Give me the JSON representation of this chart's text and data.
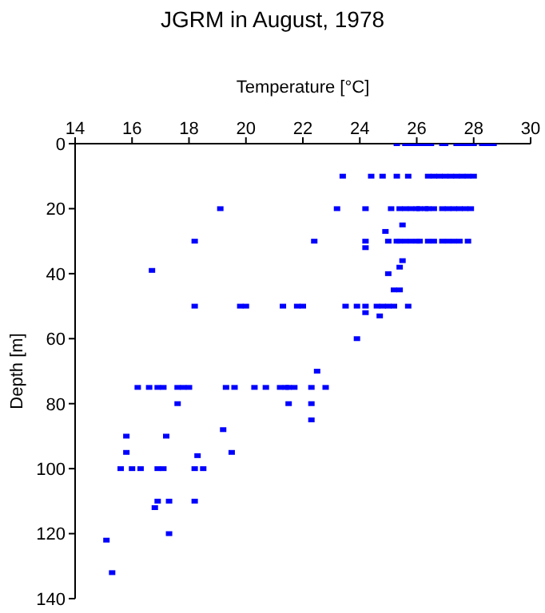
{
  "chart_data": {
    "type": "scatter",
    "title": "JGRM in August, 1978",
    "xlabel": "Temperature [°C]",
    "ylabel": "Depth [m]",
    "xlim": [
      14,
      30
    ],
    "xticks": [
      14,
      16,
      18,
      20,
      22,
      24,
      26,
      28,
      30
    ],
    "ylim": [
      140,
      0
    ],
    "yticks": [
      0,
      20,
      40,
      60,
      80,
      100,
      120,
      140
    ],
    "grid": false,
    "legend": false,
    "marker": "square",
    "series": [
      {
        "color": "#0000ff",
        "x": [
          25.3,
          25.6,
          25.8,
          26.0,
          26.2,
          26.4,
          26.5,
          26.9,
          27.0,
          27.4,
          27.6,
          27.8,
          28.0,
          28.3,
          28.5,
          28.7,
          23.4,
          24.4,
          24.8,
          25.3,
          25.7,
          26.4,
          26.6,
          26.8,
          27.0,
          27.2,
          27.4,
          27.6,
          27.8,
          28.0,
          19.1,
          23.2,
          24.2,
          25.1,
          25.4,
          25.6,
          25.8,
          26.0,
          26.1,
          26.3,
          26.4,
          26.6,
          26.9,
          27.1,
          27.3,
          27.5,
          27.7,
          27.9,
          25.5,
          24.9,
          18.2,
          22.4,
          24.2,
          25.0,
          25.3,
          25.4,
          25.6,
          25.8,
          26.0,
          26.1,
          26.4,
          26.6,
          26.9,
          27.1,
          27.3,
          27.5,
          27.8,
          24.2,
          25.5,
          25.4,
          16.7,
          25.0,
          25.2,
          25.4,
          18.2,
          19.8,
          20.0,
          21.3,
          21.8,
          22.0,
          23.5,
          23.9,
          24.2,
          24.6,
          24.8,
          25.0,
          25.2,
          25.7,
          24.2,
          24.7,
          23.9,
          22.5,
          16.2,
          16.6,
          16.9,
          17.1,
          17.6,
          17.8,
          18.0,
          19.3,
          19.6,
          20.3,
          20.7,
          21.2,
          21.4,
          21.5,
          21.7,
          22.3,
          22.8,
          17.6,
          21.5,
          22.3,
          22.3,
          19.2,
          15.8,
          17.2,
          15.8,
          19.5,
          18.3,
          15.6,
          16.0,
          16.3,
          16.9,
          17.1,
          18.2,
          18.5,
          16.9,
          17.3,
          18.2,
          16.8,
          17.3,
          15.1,
          15.3
        ],
        "values": [
          0,
          0,
          0,
          0,
          0,
          0,
          0,
          0,
          0,
          0,
          0,
          0,
          0,
          0,
          0,
          0,
          10,
          10,
          10,
          10,
          10,
          10,
          10,
          10,
          10,
          10,
          10,
          10,
          10,
          10,
          20,
          20,
          20,
          20,
          20,
          20,
          20,
          20,
          20,
          20,
          20,
          20,
          20,
          20,
          20,
          20,
          20,
          20,
          25,
          27,
          30,
          30,
          30,
          30,
          30,
          30,
          30,
          30,
          30,
          30,
          30,
          30,
          30,
          30,
          30,
          30,
          30,
          32,
          36,
          38,
          39,
          40,
          45,
          45,
          50,
          50,
          50,
          50,
          50,
          50,
          50,
          50,
          50,
          50,
          50,
          50,
          50,
          50,
          52,
          53,
          60,
          70,
          75,
          75,
          75,
          75,
          75,
          75,
          75,
          75,
          75,
          75,
          75,
          75,
          75,
          75,
          75,
          75,
          75,
          80,
          80,
          80,
          85,
          88,
          90,
          90,
          95,
          95,
          96,
          100,
          100,
          100,
          100,
          100,
          100,
          100,
          110,
          110,
          110,
          112,
          120,
          122,
          132
        ]
      }
    ]
  }
}
